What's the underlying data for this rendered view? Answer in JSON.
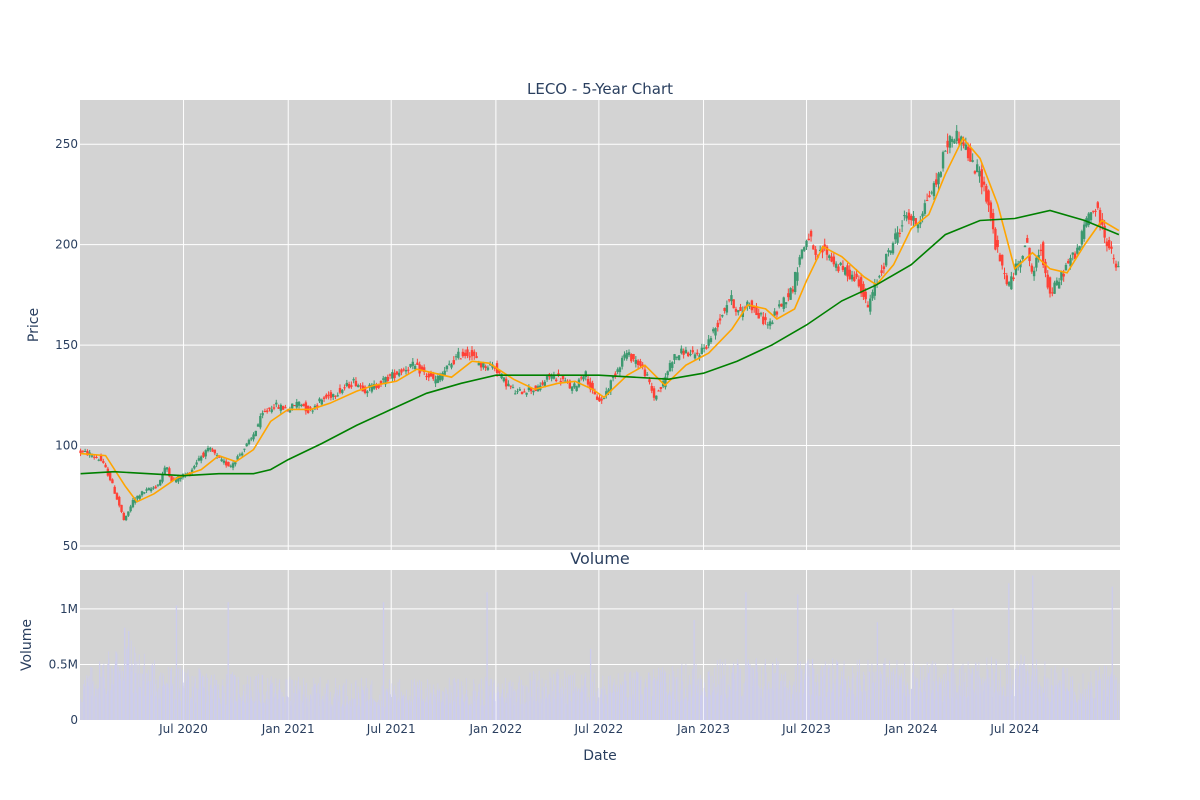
{
  "chart_data": [
    {
      "type": "candlestick",
      "title": "LECO - 5-Year Chart",
      "xlabel": "",
      "ylabel": "Price",
      "ylim": [
        48,
        272
      ],
      "yticks": [
        50,
        100,
        150,
        200,
        250
      ],
      "grid": true,
      "background": "#d3d3d3",
      "up_color": "#3d9970",
      "down_color": "#ff4136",
      "ma_short_color": "#ffa500",
      "ma_long_color": "#008000",
      "price_path": [
        [
          "2020-01-02",
          97
        ],
        [
          "2020-01-20",
          96
        ],
        [
          "2020-02-10",
          93
        ],
        [
          "2020-02-25",
          85
        ],
        [
          "2020-03-12",
          72
        ],
        [
          "2020-03-23",
          62
        ],
        [
          "2020-04-06",
          72
        ],
        [
          "2020-04-20",
          76
        ],
        [
          "2020-05-05",
          78
        ],
        [
          "2020-05-20",
          80
        ],
        [
          "2020-06-05",
          90
        ],
        [
          "2020-06-15",
          82
        ],
        [
          "2020-07-01",
          85
        ],
        [
          "2020-07-15",
          86
        ],
        [
          "2020-08-01",
          94
        ],
        [
          "2020-08-20",
          98
        ],
        [
          "2020-09-10",
          92
        ],
        [
          "2020-09-25",
          90
        ],
        [
          "2020-10-10",
          95
        ],
        [
          "2020-11-01",
          103
        ],
        [
          "2020-11-20",
          115
        ],
        [
          "2020-12-10",
          120
        ],
        [
          "2021-01-05",
          118
        ],
        [
          "2021-01-25",
          122
        ],
        [
          "2021-02-10",
          117
        ],
        [
          "2021-03-01",
          122
        ],
        [
          "2021-03-20",
          125
        ],
        [
          "2021-04-10",
          128
        ],
        [
          "2021-05-01",
          132
        ],
        [
          "2021-05-20",
          128
        ],
        [
          "2021-06-10",
          130
        ],
        [
          "2021-07-01",
          134
        ],
        [
          "2021-07-20",
          137
        ],
        [
          "2021-08-10",
          140
        ],
        [
          "2021-09-01",
          136
        ],
        [
          "2021-09-20",
          132
        ],
        [
          "2021-10-10",
          138
        ],
        [
          "2021-11-01",
          145
        ],
        [
          "2021-11-20",
          146
        ],
        [
          "2021-12-10",
          140
        ],
        [
          "2022-01-01",
          140
        ],
        [
          "2022-01-20",
          132
        ],
        [
          "2022-02-10",
          126
        ],
        [
          "2022-03-01",
          128
        ],
        [
          "2022-03-20",
          128
        ],
        [
          "2022-04-10",
          135
        ],
        [
          "2022-05-01",
          133
        ],
        [
          "2022-05-20",
          128
        ],
        [
          "2022-06-10",
          137
        ],
        [
          "2022-06-25",
          125
        ],
        [
          "2022-07-10",
          122
        ],
        [
          "2022-08-01",
          135
        ],
        [
          "2022-08-20",
          146
        ],
        [
          "2022-09-10",
          142
        ],
        [
          "2022-09-25",
          136
        ],
        [
          "2022-10-10",
          124
        ],
        [
          "2022-10-25",
          130
        ],
        [
          "2022-11-10",
          143
        ],
        [
          "2022-12-01",
          147
        ],
        [
          "2022-12-20",
          144
        ],
        [
          "2023-01-10",
          150
        ],
        [
          "2023-02-01",
          162
        ],
        [
          "2023-02-20",
          174
        ],
        [
          "2023-03-10",
          165
        ],
        [
          "2023-03-25",
          172
        ],
        [
          "2023-04-10",
          165
        ],
        [
          "2023-05-01",
          160
        ],
        [
          "2023-05-20",
          170
        ],
        [
          "2023-06-10",
          178
        ],
        [
          "2023-06-25",
          196
        ],
        [
          "2023-07-10",
          205
        ],
        [
          "2023-07-20",
          192
        ],
        [
          "2023-08-05",
          198
        ],
        [
          "2023-08-25",
          190
        ],
        [
          "2023-09-15",
          186
        ],
        [
          "2023-10-05",
          182
        ],
        [
          "2023-10-20",
          168
        ],
        [
          "2023-11-01",
          178
        ],
        [
          "2023-11-20",
          192
        ],
        [
          "2023-12-10",
          205
        ],
        [
          "2023-12-28",
          215
        ],
        [
          "2024-01-15",
          210
        ],
        [
          "2024-02-01",
          222
        ],
        [
          "2024-02-20",
          232
        ],
        [
          "2024-03-05",
          248
        ],
        [
          "2024-03-20",
          255
        ],
        [
          "2024-04-05",
          252
        ],
        [
          "2024-04-20",
          240
        ],
        [
          "2024-05-05",
          235
        ],
        [
          "2024-05-20",
          220
        ],
        [
          "2024-06-01",
          200
        ],
        [
          "2024-06-15",
          186
        ],
        [
          "2024-06-25",
          180
        ],
        [
          "2024-07-10",
          190
        ],
        [
          "2024-07-25",
          202
        ],
        [
          "2024-08-05",
          185
        ],
        [
          "2024-08-20",
          198
        ],
        [
          "2024-09-05",
          175
        ],
        [
          "2024-09-20",
          182
        ],
        [
          "2024-10-05",
          190
        ],
        [
          "2024-10-25",
          198
        ],
        [
          "2024-11-10",
          215
        ],
        [
          "2024-11-25",
          218
        ],
        [
          "2024-12-10",
          205
        ],
        [
          "2024-12-31",
          188
        ]
      ],
      "ma_short": [
        [
          "2020-01-02",
          96
        ],
        [
          "2020-02-15",
          95
        ],
        [
          "2020-03-20",
          80
        ],
        [
          "2020-04-10",
          72
        ],
        [
          "2020-05-10",
          76
        ],
        [
          "2020-06-20",
          84
        ],
        [
          "2020-08-01",
          88
        ],
        [
          "2020-09-01",
          95
        ],
        [
          "2020-10-01",
          92
        ],
        [
          "2020-11-01",
          98
        ],
        [
          "2020-12-01",
          112
        ],
        [
          "2021-01-01",
          118
        ],
        [
          "2021-02-10",
          118
        ],
        [
          "2021-03-15",
          121
        ],
        [
          "2021-05-01",
          127
        ],
        [
          "2021-06-01",
          130
        ],
        [
          "2021-07-10",
          132
        ],
        [
          "2021-08-15",
          138
        ],
        [
          "2021-09-15",
          136
        ],
        [
          "2021-10-15",
          134
        ],
        [
          "2021-11-20",
          142
        ],
        [
          "2021-12-20",
          141
        ],
        [
          "2022-02-01",
          133
        ],
        [
          "2022-03-10",
          128
        ],
        [
          "2022-04-20",
          131
        ],
        [
          "2022-05-20",
          132
        ],
        [
          "2022-06-20",
          128
        ],
        [
          "2022-07-10",
          124
        ],
        [
          "2022-08-20",
          135
        ],
        [
          "2022-09-20",
          140
        ],
        [
          "2022-10-25",
          130
        ],
        [
          "2022-12-01",
          140
        ],
        [
          "2023-01-10",
          146
        ],
        [
          "2023-02-20",
          158
        ],
        [
          "2023-03-20",
          170
        ],
        [
          "2023-04-20",
          168
        ],
        [
          "2023-05-10",
          163
        ],
        [
          "2023-06-10",
          168
        ],
        [
          "2023-07-01",
          182
        ],
        [
          "2023-07-30",
          199
        ],
        [
          "2023-09-01",
          194
        ],
        [
          "2023-10-10",
          184
        ],
        [
          "2023-11-01",
          180
        ],
        [
          "2023-12-01",
          190
        ],
        [
          "2024-01-01",
          208
        ],
        [
          "2024-02-01",
          215
        ],
        [
          "2024-03-01",
          235
        ],
        [
          "2024-04-01",
          253
        ],
        [
          "2024-05-01",
          243
        ],
        [
          "2024-06-01",
          220
        ],
        [
          "2024-07-01",
          188
        ],
        [
          "2024-08-01",
          196
        ],
        [
          "2024-09-01",
          188
        ],
        [
          "2024-10-01",
          186
        ],
        [
          "2024-11-01",
          200
        ],
        [
          "2024-12-01",
          212
        ],
        [
          "2024-12-31",
          207
        ]
      ],
      "ma_long": [
        [
          "2020-01-02",
          86
        ],
        [
          "2020-03-01",
          87
        ],
        [
          "2020-05-01",
          86
        ],
        [
          "2020-07-01",
          85
        ],
        [
          "2020-09-01",
          86
        ],
        [
          "2020-11-01",
          86
        ],
        [
          "2020-12-01",
          88
        ],
        [
          "2021-01-01",
          93
        ],
        [
          "2021-03-01",
          101
        ],
        [
          "2021-05-01",
          110
        ],
        [
          "2021-07-01",
          118
        ],
        [
          "2021-09-01",
          126
        ],
        [
          "2021-11-01",
          131
        ],
        [
          "2022-01-01",
          135
        ],
        [
          "2022-03-01",
          135
        ],
        [
          "2022-05-01",
          135
        ],
        [
          "2022-07-01",
          135
        ],
        [
          "2022-09-01",
          134
        ],
        [
          "2022-11-01",
          133
        ],
        [
          "2023-01-01",
          136
        ],
        [
          "2023-03-01",
          142
        ],
        [
          "2023-05-01",
          150
        ],
        [
          "2023-07-01",
          160
        ],
        [
          "2023-09-01",
          172
        ],
        [
          "2023-11-01",
          180
        ],
        [
          "2024-01-01",
          190
        ],
        [
          "2024-03-01",
          205
        ],
        [
          "2024-05-01",
          212
        ],
        [
          "2024-07-01",
          213
        ],
        [
          "2024-09-01",
          217
        ],
        [
          "2024-11-01",
          212
        ],
        [
          "2024-12-31",
          205
        ]
      ]
    },
    {
      "type": "bar",
      "title": "Volume",
      "xlabel": "Date",
      "ylabel": "Volume",
      "ylim": [
        0,
        1350000
      ],
      "yticks": [
        0,
        500000,
        1000000
      ],
      "ytick_labels": [
        "0",
        "0.5M",
        "1M"
      ],
      "xticks": [
        "2020-07-01",
        "2021-01-01",
        "2021-07-01",
        "2022-01-01",
        "2022-07-01",
        "2023-01-01",
        "2023-07-01",
        "2024-01-01",
        "2024-07-01"
      ],
      "xtick_labels": [
        "Jul 2020",
        "Jan 2021",
        "Jul 2021",
        "Jan 2022",
        "Jul 2022",
        "Jan 2023",
        "Jul 2023",
        "Jan 2024",
        "Jul 2024"
      ],
      "grid": true,
      "background": "#d3d3d3",
      "bar_color": "#ccccee",
      "x_range": [
        "2020-01-01",
        "2025-01-02"
      ],
      "volume_level": [
        [
          "2020-01-01",
          260000
        ],
        [
          "2020-03-15",
          560000
        ],
        [
          "2020-05-01",
          400000
        ],
        [
          "2020-07-01",
          330000
        ],
        [
          "2020-10-01",
          300000
        ],
        [
          "2021-01-01",
          270000
        ],
        [
          "2021-07-01",
          260000
        ],
        [
          "2022-01-01",
          270000
        ],
        [
          "2022-04-01",
          330000
        ],
        [
          "2022-07-01",
          290000
        ],
        [
          "2022-10-01",
          320000
        ],
        [
          "2023-01-01",
          380000
        ],
        [
          "2023-04-01",
          400000
        ],
        [
          "2023-07-01",
          380000
        ],
        [
          "2023-10-01",
          400000
        ],
        [
          "2024-01-01",
          380000
        ],
        [
          "2024-04-01",
          360000
        ],
        [
          "2024-07-01",
          420000
        ],
        [
          "2024-10-01",
          330000
        ],
        [
          "2024-12-31",
          350000
        ]
      ],
      "volume_spikes": [
        [
          "2020-03-20",
          830000
        ],
        [
          "2020-03-27",
          800000
        ],
        [
          "2020-06-19",
          1030000
        ],
        [
          "2020-09-18",
          1060000
        ],
        [
          "2021-06-18",
          1060000
        ],
        [
          "2021-12-17",
          1150000
        ],
        [
          "2022-06-17",
          640000
        ],
        [
          "2022-12-16",
          900000
        ],
        [
          "2023-03-17",
          1150000
        ],
        [
          "2023-06-16",
          1130000
        ],
        [
          "2023-11-03",
          880000
        ],
        [
          "2024-03-15",
          1000000
        ],
        [
          "2024-06-21",
          1230000
        ],
        [
          "2024-08-02",
          1300000
        ],
        [
          "2024-12-20",
          1200000
        ]
      ]
    }
  ]
}
